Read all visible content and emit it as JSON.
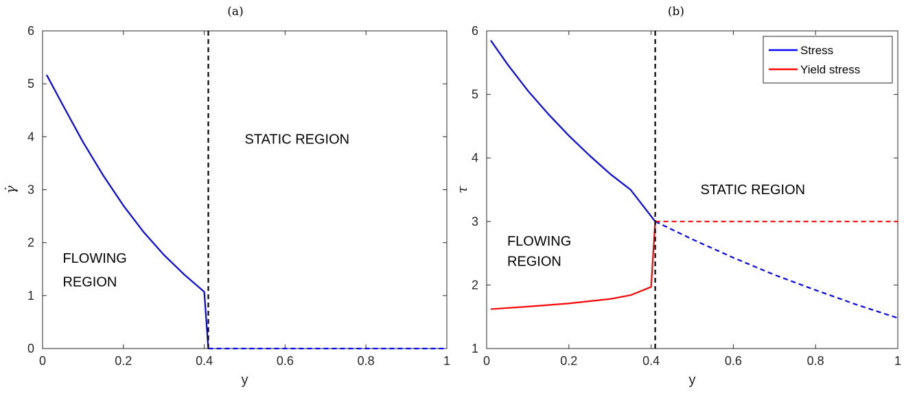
{
  "chart_data": [
    {
      "type": "line",
      "panel_label": "(a)",
      "xlabel": "y",
      "ylabel": "γ̇",
      "xlim": [
        0,
        1
      ],
      "ylim": [
        0,
        6
      ],
      "xticks": [
        "0",
        "0.2",
        "0.4",
        "0.6",
        "0.8",
        "1"
      ],
      "yticks": [
        "0",
        "1",
        "2",
        "3",
        "4",
        "5",
        "6"
      ],
      "grid": false,
      "vline": {
        "x": 0.41,
        "style": "dashed",
        "color": "#000000"
      },
      "series": [
        {
          "style": "solid",
          "color": "#0000ff",
          "x": [
            0.01,
            0.05,
            0.1,
            0.15,
            0.2,
            0.25,
            0.3,
            0.35,
            0.4,
            0.41
          ],
          "y": [
            5.17,
            4.6,
            3.9,
            3.27,
            2.7,
            2.2,
            1.77,
            1.4,
            1.07,
            0.0
          ]
        },
        {
          "style": "dashed",
          "color": "#0000ff",
          "x": [
            0.41,
            1.0
          ],
          "y": [
            0.0,
            0.0
          ]
        }
      ],
      "annotations": [
        {
          "text": "FLOWING",
          "x": 0.05,
          "y": 1.62
        },
        {
          "text": "REGION",
          "x": 0.05,
          "y": 1.17
        },
        {
          "text": "STATIC REGION",
          "x": 0.5,
          "y": 3.87
        }
      ]
    },
    {
      "type": "line",
      "panel_label": "(b)",
      "xlabel": "y",
      "ylabel": "τ",
      "xlim": [
        0,
        1
      ],
      "ylim": [
        1,
        6
      ],
      "xticks": [
        "0",
        "0.2",
        "0.4",
        "0.6",
        "0.8",
        "1"
      ],
      "yticks": [
        "1",
        "2",
        "3",
        "4",
        "5",
        "6"
      ],
      "grid": false,
      "legend_position": "top-right",
      "legend": [
        {
          "name": "Stress",
          "color": "#0000ff"
        },
        {
          "name": "Yield stress",
          "color": "#ff0000"
        }
      ],
      "vline": {
        "x": 0.41,
        "style": "dashed",
        "color": "#000000"
      },
      "series": [
        {
          "name": "Stress",
          "style": "solid",
          "color": "#0000ff",
          "x": [
            0.01,
            0.05,
            0.1,
            0.15,
            0.2,
            0.25,
            0.3,
            0.35,
            0.41
          ],
          "y": [
            5.85,
            5.48,
            5.06,
            4.69,
            4.35,
            4.04,
            3.75,
            3.5,
            3.0
          ]
        },
        {
          "style": "dashed",
          "color": "#0000ff",
          "x": [
            0.41,
            0.5,
            0.6,
            0.7,
            0.8,
            0.9,
            1.0
          ],
          "y": [
            3.0,
            2.72,
            2.43,
            2.16,
            1.92,
            1.69,
            1.48
          ]
        },
        {
          "name": "Yield stress",
          "style": "solid",
          "color": "#ff0000",
          "x": [
            0.01,
            0.1,
            0.2,
            0.3,
            0.35,
            0.4,
            0.41
          ],
          "y": [
            1.62,
            1.66,
            1.71,
            1.78,
            1.84,
            1.97,
            3.0
          ]
        },
        {
          "style": "dashed",
          "color": "#ff0000",
          "x": [
            0.41,
            1.0
          ],
          "y": [
            3.0,
            3.0
          ]
        }
      ],
      "annotations": [
        {
          "text": "FLOWING",
          "x": 0.05,
          "y": 2.62
        },
        {
          "text": "REGION",
          "x": 0.05,
          "y": 2.3
        },
        {
          "text": "STATIC REGION",
          "x": 0.52,
          "y": 3.43
        }
      ]
    }
  ]
}
